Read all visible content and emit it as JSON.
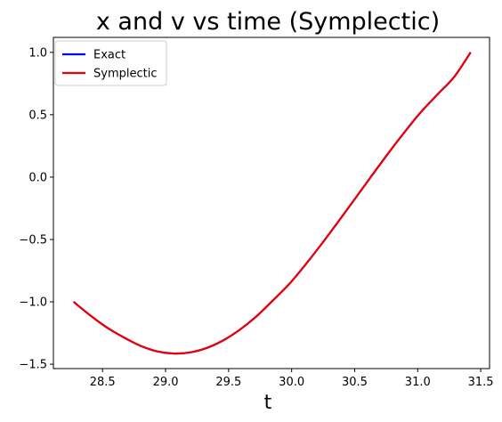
{
  "chart_data": {
    "type": "line",
    "title": "x and v vs time (Symplectic)",
    "xlabel": "t",
    "ylabel": "",
    "xlim": [
      28.11,
      31.57
    ],
    "ylim": [
      -1.535,
      1.12
    ],
    "xticks": [
      28.5,
      29.0,
      29.5,
      30.0,
      30.5,
      31.0,
      31.5
    ],
    "xtick_labels": [
      "28.5",
      "29.0",
      "29.5",
      "30.0",
      "30.5",
      "31.0",
      "31.5"
    ],
    "yticks": [
      1.0,
      0.5,
      0.0,
      -0.5,
      -1.0,
      -1.5
    ],
    "ytick_labels": [
      "1.0",
      "0.5",
      "0.0",
      "−0.5",
      "−1.0",
      "−1.5"
    ],
    "grid": false,
    "legend_position": "top-left",
    "series": [
      {
        "name": "Exact",
        "color": "#0000ff",
        "x": [
          28.27,
          28.4,
          28.53,
          28.67,
          28.8,
          28.93,
          29.06,
          29.19,
          29.32,
          29.45,
          29.58,
          29.71,
          29.84,
          29.98,
          30.11,
          30.24,
          30.37,
          30.5,
          30.63,
          30.76,
          30.89,
          31.02,
          31.16,
          31.29,
          31.42
        ],
        "y": [
          -1.0,
          -1.107,
          -1.203,
          -1.286,
          -1.352,
          -1.396,
          -1.414,
          -1.406,
          -1.372,
          -1.313,
          -1.23,
          -1.126,
          -1.0,
          -0.858,
          -0.701,
          -0.533,
          -0.357,
          -0.177,
          0.004,
          0.182,
          0.353,
          0.515,
          0.666,
          0.804,
          1.0
        ]
      },
      {
        "name": "Symplectic",
        "color": "#ee0000",
        "x": [
          28.27,
          28.4,
          28.53,
          28.67,
          28.8,
          28.93,
          29.06,
          29.19,
          29.32,
          29.45,
          29.58,
          29.71,
          29.84,
          29.98,
          30.11,
          30.24,
          30.37,
          30.5,
          30.63,
          30.76,
          30.89,
          31.02,
          31.16,
          31.29,
          31.42
        ],
        "y": [
          -1.0,
          -1.107,
          -1.203,
          -1.286,
          -1.352,
          -1.396,
          -1.414,
          -1.406,
          -1.372,
          -1.313,
          -1.23,
          -1.126,
          -1.0,
          -0.858,
          -0.701,
          -0.533,
          -0.357,
          -0.177,
          0.004,
          0.182,
          0.353,
          0.515,
          0.666,
          0.804,
          1.0
        ]
      }
    ]
  }
}
